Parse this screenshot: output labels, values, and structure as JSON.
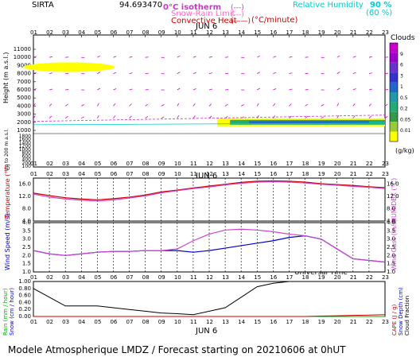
{
  "header": {
    "site": "SIRTA",
    "coords": "94.693470",
    "legend": {
      "isotherm": "0°C isotherm",
      "isotherm_swatch": "(---)",
      "snow_rain": "Snow-Rain Limit",
      "snow_rain_swatch": "(---)",
      "convective": "Convective Heat",
      "convective_swatch": "(——)",
      "convective_unit": "(°C/minute)",
      "rh_label": "Relative Humidity",
      "rh_90": "90 %",
      "rh_60": "(60 %)"
    }
  },
  "date_labels": {
    "jun6": "JUN 6",
    "universal_time": "Universal Time"
  },
  "footer": {
    "text": "Modele Atmospherique LMDZ / Forecast starting on 20210606 at 0hUT"
  },
  "axis_labels": {
    "height": "Height (m a.s.l.)",
    "up_to_200": "Up to 200 m a.s.l.",
    "temperature": "Temperature (°C)",
    "humidex": "HUMIDEX (°C)",
    "wind_speed": "Wind Speed (m/s)",
    "wind_gust": "Wind Gust (m/s)",
    "rain": "Rain (mm / hour)",
    "snow": "Snow (cm / hour)",
    "cape": "CAPE (J / g)",
    "snow_depth": "Snow Depth (cm)",
    "cloud_fraction": "Cloud Fraction"
  },
  "colorbar": {
    "title": "Clouds",
    "unit": "(g/kg)",
    "labels": [
      "9",
      "6",
      "3",
      "1",
      "0.5",
      "0.2",
      "0.05",
      "0.01"
    ],
    "colors": [
      "#cc00cc",
      "#9900cc",
      "#6633cc",
      "#3333cc",
      "#2266cc",
      "#2299aa",
      "#22aa77",
      "#339944",
      "#99cc33",
      "#ffff00"
    ]
  },
  "chart_data": [
    {
      "type": "area",
      "name": "clouds-panel",
      "x_hours": [
        "01",
        "02",
        "03",
        "04",
        "05",
        "06",
        "07",
        "08",
        "09",
        "10",
        "11",
        "12",
        "13",
        "14",
        "15",
        "16",
        "17",
        "18",
        "19",
        "20",
        "21",
        "22",
        "23"
      ],
      "y_ticks_upper": [
        "11000",
        "10000",
        "9000",
        "8000",
        "7000",
        "6000",
        "5000",
        "4000",
        "3000",
        "2000",
        "1000"
      ],
      "y_ticks_lower": [
        "1800",
        "1600",
        "1400",
        "1200",
        "1000",
        "800",
        "600",
        "400",
        "200",
        "100"
      ],
      "high_cloud": {
        "start_hour": 1,
        "end_hour": 5.5,
        "height_m": 8800,
        "color": "#ffff00"
      },
      "low_cloud": {
        "start_hour": 12.5,
        "end_hour": 23,
        "height_m": 2000,
        "colors": [
          "#ffff00",
          "#22aa77",
          "#2266cc"
        ]
      },
      "isotherm_height_m": 2700,
      "rh90_height_m": 1700
    },
    {
      "type": "line",
      "name": "temperature-panel",
      "x_hours": [
        1,
        2,
        3,
        4,
        5,
        6,
        7,
        8,
        9,
        10,
        11,
        12,
        13,
        14,
        15,
        16,
        17,
        18,
        19,
        20,
        21,
        22,
        23
      ],
      "y_ticks": [
        "16.0",
        "12.0",
        "8.0",
        "4.0"
      ],
      "ylim": [
        4,
        18
      ],
      "series": [
        {
          "name": "Temperature",
          "color": "#cc0000",
          "values": [
            13.1,
            12.3,
            11.6,
            11.2,
            10.9,
            11.3,
            11.8,
            12.5,
            13.5,
            14.1,
            14.8,
            15.4,
            16.0,
            16.6,
            17.0,
            17.1,
            17.0,
            16.7,
            16.2,
            15.9,
            15.6,
            15.2,
            14.9
          ]
        },
        {
          "name": "HUMIDEX",
          "color": "#cc44cc",
          "values": [
            12.8,
            11.8,
            11.2,
            10.8,
            10.5,
            10.9,
            11.5,
            12.2,
            13.2,
            13.9,
            14.6,
            15.1,
            15.8,
            16.3,
            16.7,
            16.8,
            16.7,
            16.4,
            16.0,
            15.7,
            15.3,
            15.0,
            14.6
          ]
        }
      ]
    },
    {
      "type": "line",
      "name": "wind-panel",
      "x_hours": [
        1,
        2,
        3,
        4,
        5,
        6,
        7,
        8,
        9,
        10,
        11,
        12,
        13,
        14,
        15,
        16,
        17,
        18,
        19,
        20,
        21,
        22,
        23
      ],
      "y_ticks": [
        "4.0",
        "3.5",
        "3.0",
        "2.5",
        "2.0",
        "1.5",
        "1.0"
      ],
      "ylim": [
        1.0,
        4.0
      ],
      "series": [
        {
          "name": "Wind Speed",
          "color": "#0000cc",
          "values": [
            2.3,
            2.1,
            2.0,
            2.1,
            2.2,
            2.25,
            2.25,
            2.3,
            2.3,
            2.3,
            2.2,
            2.3,
            2.45,
            2.6,
            2.75,
            2.9,
            3.1,
            3.2,
            3.0,
            2.4,
            1.8,
            1.7,
            1.6
          ]
        },
        {
          "name": "Wind Gust",
          "color": "#cc44cc",
          "values": [
            2.3,
            2.1,
            2.0,
            2.1,
            2.2,
            2.25,
            2.25,
            2.3,
            2.3,
            2.4,
            2.9,
            3.3,
            3.55,
            3.6,
            3.55,
            3.45,
            3.3,
            3.2,
            3.0,
            2.4,
            1.8,
            1.7,
            1.6
          ]
        }
      ]
    },
    {
      "type": "line",
      "name": "cloud-fraction-panel",
      "x_hours": [
        1,
        2,
        3,
        4,
        5,
        6,
        7,
        8,
        9,
        10,
        11,
        12,
        13,
        14,
        15,
        16,
        17,
        18,
        19,
        20,
        21,
        22,
        23
      ],
      "y_ticks": [
        "1.00",
        "0.80",
        "0.60",
        "0.40",
        "0.20",
        "0.00"
      ],
      "ylim": [
        0,
        1
      ],
      "series": [
        {
          "name": "Cloud Fraction",
          "color": "#000000",
          "values": [
            0.8,
            0.55,
            0.3,
            0.3,
            0.3,
            0.25,
            0.2,
            0.15,
            0.1,
            0.08,
            0.05,
            0.15,
            0.25,
            0.55,
            0.85,
            0.95,
            1.0,
            1.0,
            1.0,
            1.0,
            1.0,
            1.0,
            1.0
          ]
        },
        {
          "name": "Rain",
          "color": "#00aa00",
          "values": [
            0,
            0,
            0,
            0,
            0,
            0,
            0,
            0,
            0,
            0,
            0,
            0,
            0,
            0,
            0,
            0,
            0,
            0,
            0,
            0,
            0,
            0,
            0
          ]
        },
        {
          "name": "CAPE",
          "color": "#cc0000",
          "values": [
            0,
            0,
            0,
            0,
            0,
            0,
            0,
            0,
            0,
            0,
            0,
            0,
            0,
            0,
            0,
            0,
            0,
            0,
            0.01,
            0.02,
            0.03,
            0.04,
            0.05
          ]
        }
      ]
    }
  ]
}
